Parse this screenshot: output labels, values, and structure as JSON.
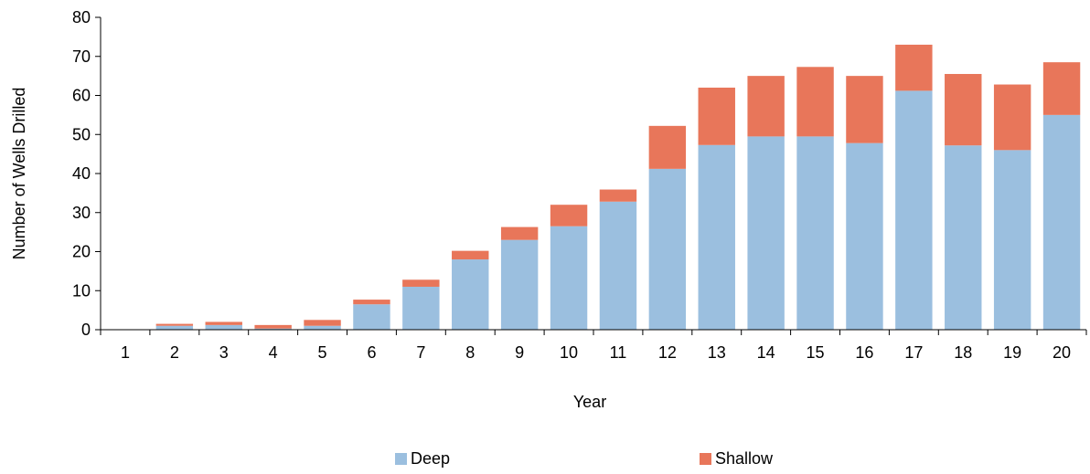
{
  "chart_data": {
    "type": "bar",
    "stacked": true,
    "categories": [
      "1",
      "2",
      "3",
      "4",
      "5",
      "6",
      "7",
      "8",
      "9",
      "10",
      "11",
      "12",
      "13",
      "14",
      "15",
      "16",
      "17",
      "18",
      "19",
      "20"
    ],
    "series": [
      {
        "name": "Deep",
        "color": "#9bbfdf",
        "values": [
          0,
          1,
          1.2,
          0.3,
          1,
          6.5,
          11,
          18,
          23,
          26.5,
          32.8,
          41.2,
          47.3,
          49.5,
          49.5,
          47.8,
          61.2,
          47.2,
          46,
          55
        ]
      },
      {
        "name": "Shallow",
        "color": "#e8765a",
        "values": [
          0,
          0.5,
          0.8,
          0.9,
          1.5,
          1.2,
          1.8,
          2.2,
          3.3,
          5.5,
          3.1,
          11,
          14.7,
          15.5,
          17.8,
          17.2,
          11.8,
          18.3,
          16.8,
          13.5
        ]
      }
    ],
    "title": "",
    "xlabel": "Year",
    "ylabel": "Number of Wells Drilled",
    "ylim": [
      0,
      80
    ],
    "yticks": [
      0,
      10,
      20,
      30,
      40,
      50,
      60,
      70,
      80
    ],
    "grid": false,
    "legend_position": "bottom"
  }
}
